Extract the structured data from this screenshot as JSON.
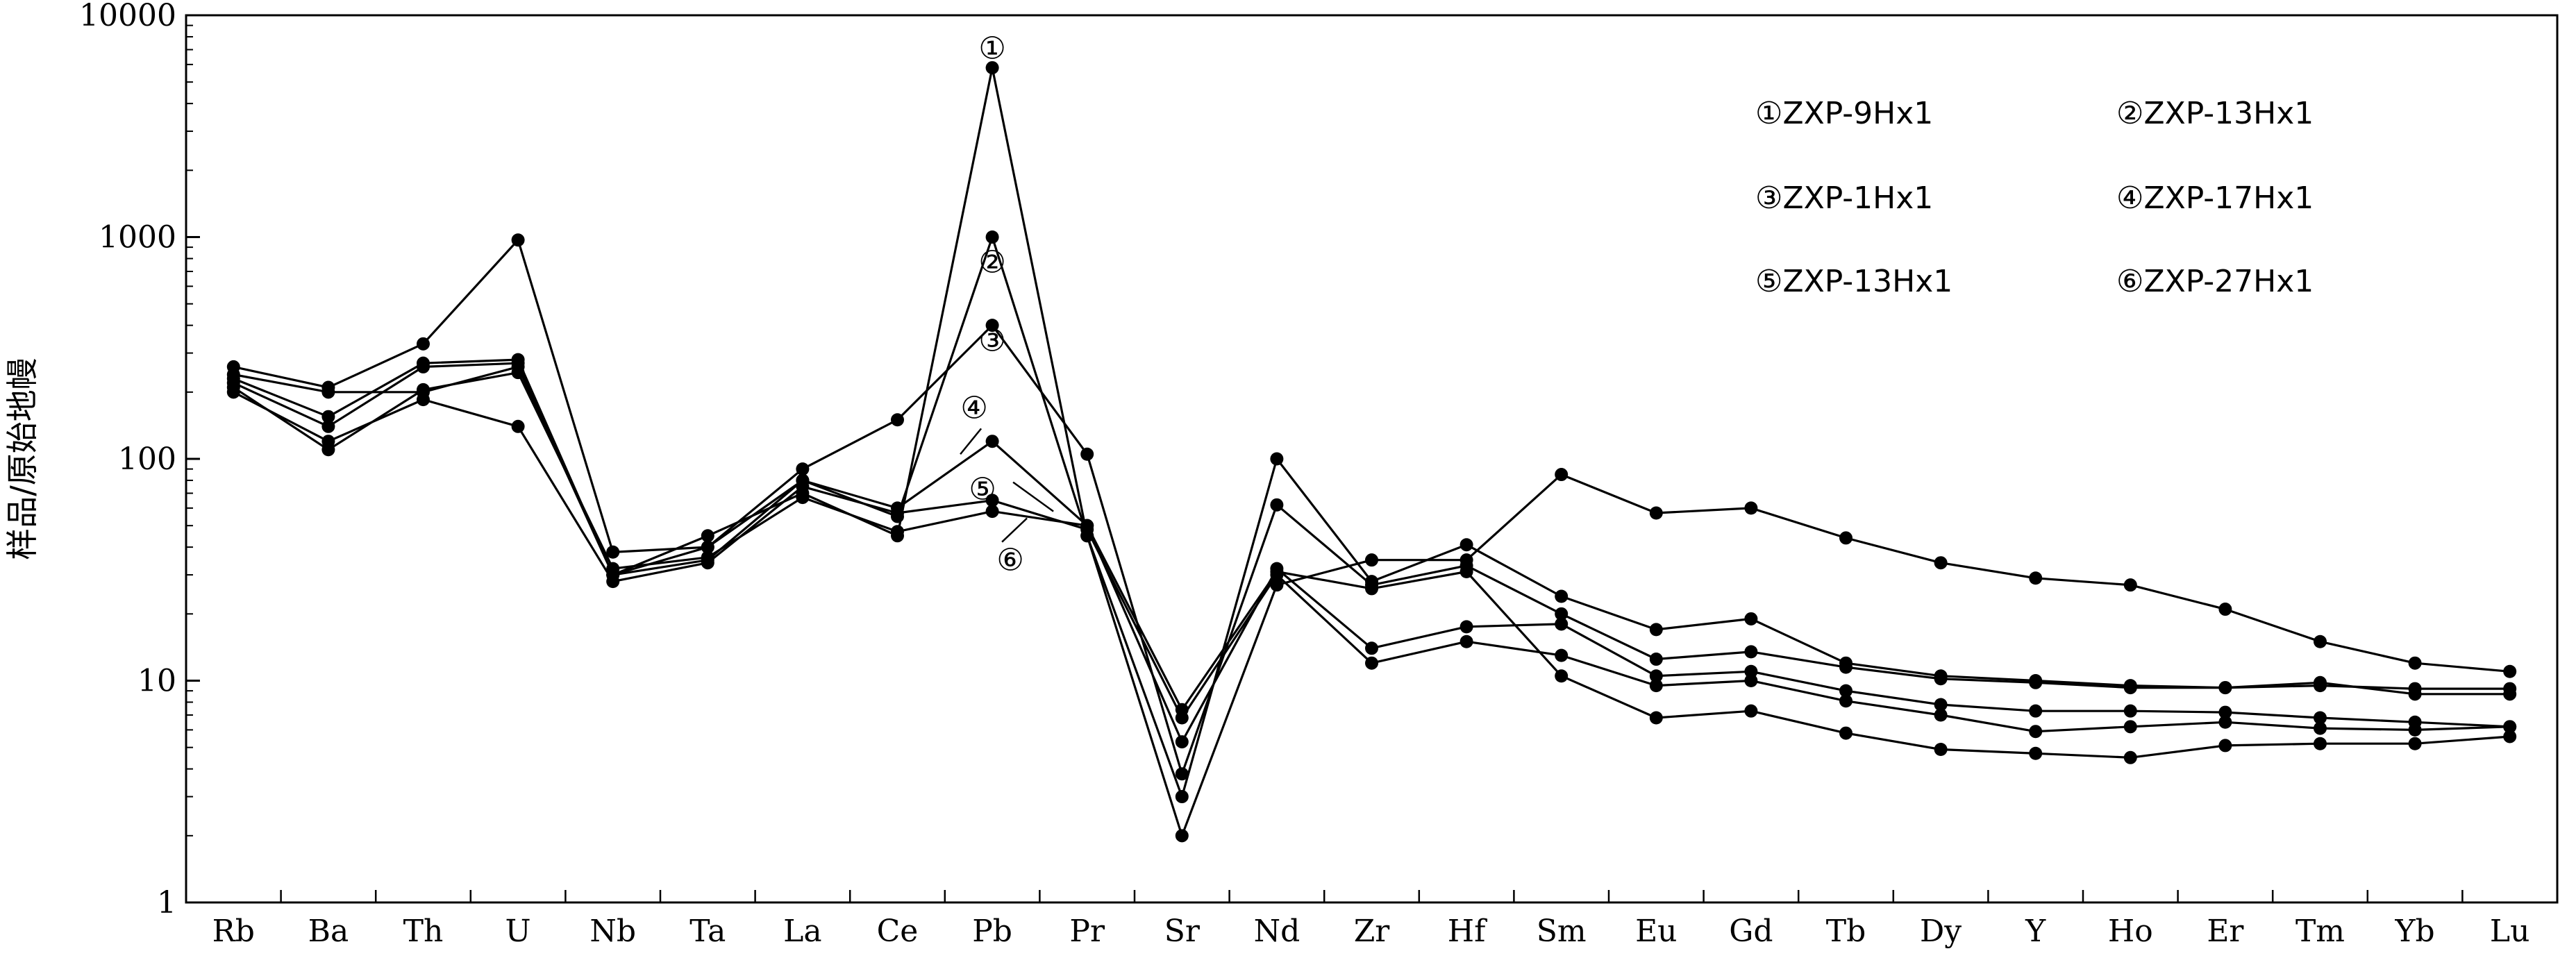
{
  "chart_data": {
    "type": "line",
    "title": "",
    "xlabel": "",
    "ylabel": "样品/原始地幔",
    "yscale": "log",
    "ylim": [
      1,
      10000
    ],
    "ytick_labels": [
      "1",
      "10",
      "100",
      "1000",
      "10000"
    ],
    "ytick_values": [
      1,
      10,
      100,
      1000,
      10000
    ],
    "grid": false,
    "legend_position": "top-right",
    "categories": [
      "Rb",
      "Ba",
      "Th",
      "U",
      "Nb",
      "Ta",
      "La",
      "Ce",
      "Pb",
      "Pr",
      "Sr",
      "Nd",
      "Zr",
      "Hf",
      "Sm",
      "Eu",
      "Gd",
      "Tb",
      "Dy",
      "Y",
      "Ho",
      "Er",
      "Tm",
      "Yb",
      "Lu"
    ],
    "series": [
      {
        "name": "①ZXP-9Hx1",
        "marker": "①",
        "values": [
          240,
          200,
          200,
          260,
          30,
          45,
          70,
          45,
          5800,
          45,
          2,
          27,
          35,
          35,
          85,
          57,
          60,
          44,
          34,
          29,
          27,
          21,
          15,
          12,
          11
        ]
      },
      {
        "name": "②ZXP-13Hx1",
        "marker": "②",
        "values": [
          260,
          210,
          330,
          970,
          38,
          40,
          80,
          55,
          1000,
          45,
          3,
          100,
          28,
          41,
          24,
          17,
          19,
          12,
          10.5,
          10,
          9.5,
          9.3,
          9.5,
          9.2,
          9.2
        ]
      },
      {
        "name": "③ZXP-1Hx1",
        "marker": "③",
        "values": [
          230,
          155,
          270,
          280,
          30,
          40,
          90,
          150,
          400,
          105,
          3.8,
          62,
          27,
          33,
          20,
          12.5,
          13.5,
          11.5,
          10.2,
          9.8,
          9.3,
          9.3,
          9.8,
          8.7,
          8.7
        ]
      },
      {
        "name": "④ZXP-17Hx1",
        "marker": "④",
        "values": [
          220,
          140,
          260,
          270,
          30,
          35,
          80,
          60,
          120,
          50,
          5.3,
          32,
          14,
          17.5,
          18,
          10.5,
          11,
          9,
          7.8,
          7.3,
          7.3,
          7.2,
          6.8,
          6.5,
          6.2
        ]
      },
      {
        "name": "⑤ZXP-13Hx1",
        "marker": "⑤",
        "values": [
          200,
          120,
          185,
          140,
          28,
          34,
          75,
          57,
          65,
          48,
          6.8,
          30,
          12,
          15,
          13,
          9.5,
          10,
          8.1,
          7,
          5.9,
          6.2,
          6.5,
          6.1,
          6,
          6.2
        ]
      },
      {
        "name": "⑥ZXP-27Hx1",
        "marker": "⑥",
        "values": [
          210,
          110,
          205,
          245,
          32,
          36,
          67,
          47,
          58,
          50,
          7.4,
          31,
          26,
          31,
          10.5,
          6.8,
          7.3,
          5.8,
          4.9,
          4.7,
          4.5,
          5.1,
          5.2,
          5.2,
          5.6
        ]
      }
    ],
    "line_color": "#000000",
    "marker_color": "#000000"
  }
}
